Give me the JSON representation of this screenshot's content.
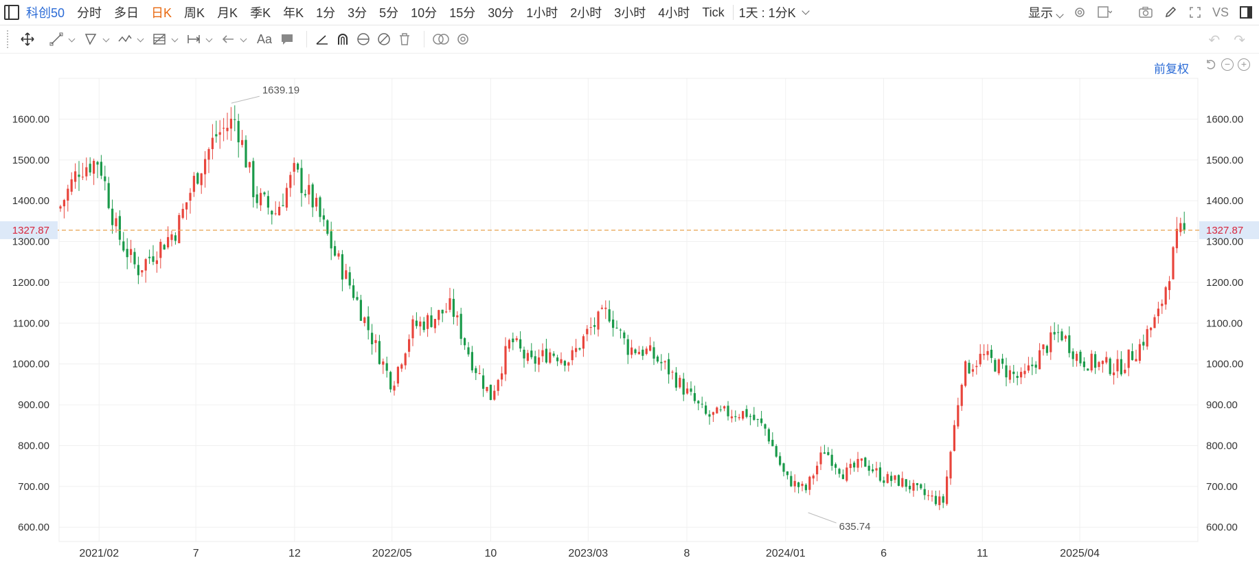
{
  "topbar": {
    "symbol": "科创50",
    "timeframes": [
      "分时",
      "多日",
      "日K",
      "周K",
      "月K",
      "季K",
      "年K",
      "1分",
      "3分",
      "5分",
      "10分",
      "15分",
      "30分",
      "1小时",
      "2小时",
      "3小时",
      "4小时",
      "Tick"
    ],
    "active_timeframe": "日K",
    "range_label": "1天 : 1分K",
    "display_label": "显示",
    "vs_label": "VS"
  },
  "toolbar": {
    "text_tool_label": "Aa"
  },
  "adjust_label": "前复权",
  "colors": {
    "up": "#e8453c",
    "down": "#1a9a4a",
    "accent": "#2b6bd6",
    "active": "#e8680f",
    "price_line": "#e8a04c",
    "price_label": "#d7263d"
  },
  "chart_data": {
    "type": "candlestick",
    "title": "",
    "y_ticks": [
      "600.00",
      "700.00",
      "800.00",
      "900.00",
      "1000.00",
      "1100.00",
      "1200.00",
      "1300.00",
      "1400.00",
      "1500.00",
      "1600.00"
    ],
    "ylim": [
      565,
      1700
    ],
    "x_ticks": [
      "2021/02",
      "7",
      "12",
      "2022/05",
      "10",
      "2023/03",
      "8",
      "2024/01",
      "6",
      "11",
      "2025/04"
    ],
    "current_price": "1327.87",
    "annotations": [
      {
        "text": "1639.19",
        "kind": "high",
        "date": "2021-08",
        "value": 1639.19
      },
      {
        "text": "635.74",
        "kind": "low",
        "date": "2024-02",
        "value": 635.74
      }
    ],
    "price_path": [
      [
        "2020-12",
        1380
      ],
      [
        "2021-01",
        1480
      ],
      [
        "2021-02",
        1500
      ],
      [
        "2021-03",
        1320
      ],
      [
        "2021-04",
        1230
      ],
      [
        "2021-05",
        1280
      ],
      [
        "2021-06",
        1330
      ],
      [
        "2021-07",
        1460
      ],
      [
        "2021-08",
        1560
      ],
      [
        "2021-09",
        1600
      ],
      [
        "2021-10",
        1410
      ],
      [
        "2021-11",
        1370
      ],
      [
        "2021-12",
        1470
      ],
      [
        "2022-01",
        1390
      ],
      [
        "2022-02",
        1270
      ],
      [
        "2022-03",
        1180
      ],
      [
        "2022-04",
        1060
      ],
      [
        "2022-05",
        950
      ],
      [
        "2022-06",
        1090
      ],
      [
        "2022-07",
        1110
      ],
      [
        "2022-08",
        1140
      ],
      [
        "2022-09",
        1010
      ],
      [
        "2022-10",
        920
      ],
      [
        "2022-11",
        1060
      ],
      [
        "2022-12",
        1000
      ],
      [
        "2023-01",
        1030
      ],
      [
        "2023-02",
        1010
      ],
      [
        "2023-03",
        1080
      ],
      [
        "2023-04",
        1130
      ],
      [
        "2023-05",
        1040
      ],
      [
        "2023-06",
        1030
      ],
      [
        "2023-07",
        990
      ],
      [
        "2023-08",
        930
      ],
      [
        "2023-09",
        870
      ],
      [
        "2023-10",
        880
      ],
      [
        "2023-11",
        880
      ],
      [
        "2023-12",
        840
      ],
      [
        "2024-01",
        720
      ],
      [
        "2024-02",
        690
      ],
      [
        "2024-03",
        790
      ],
      [
        "2024-04",
        730
      ],
      [
        "2024-05",
        760
      ],
      [
        "2024-06",
        720
      ],
      [
        "2024-07",
        710
      ],
      [
        "2024-08",
        680
      ],
      [
        "2024-09",
        660
      ],
      [
        "2024-10",
        980
      ],
      [
        "2024-11",
        1020
      ],
      [
        "2024-12",
        990
      ],
      [
        "2025-01",
        960
      ],
      [
        "2025-02",
        1030
      ],
      [
        "2025-03",
        1080
      ],
      [
        "2025-04",
        1010
      ],
      [
        "2025-05",
        1000
      ],
      [
        "2025-06",
        990
      ],
      [
        "2025-07",
        1040
      ],
      [
        "2025-08",
        1120
      ],
      [
        "2025-09",
        1320
      ]
    ],
    "grid": true,
    "y_axis_position": "both"
  }
}
